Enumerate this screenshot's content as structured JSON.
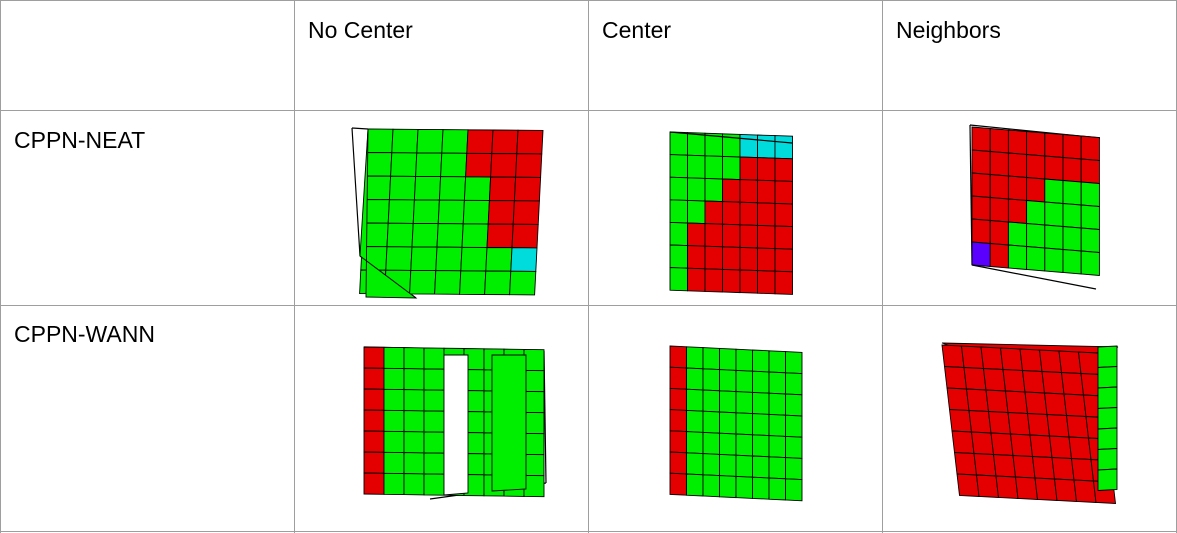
{
  "table": {
    "columns": [
      "",
      "No Center",
      "Center",
      "Neighbors"
    ],
    "rows": [
      {
        "label": "CPPN-NEAT"
      },
      {
        "label": "CPPN-WANN"
      }
    ]
  },
  "colors": {
    "green": "#00ee00",
    "red": "#e40000",
    "cyan": "#00dcdc",
    "blue": "#5a00ff",
    "grid_line": "#9e9e9e",
    "edge": "#000000"
  }
}
